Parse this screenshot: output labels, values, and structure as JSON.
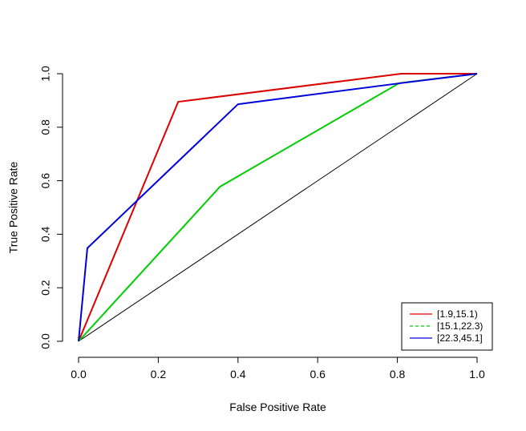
{
  "chart_data": {
    "type": "line",
    "title": "",
    "xlabel": "False Positive Rate",
    "ylabel": "True Positive Rate",
    "xlim": [
      0,
      1
    ],
    "ylim": [
      0,
      1
    ],
    "x_ticks": [
      "0.0",
      "0.2",
      "0.4",
      "0.6",
      "0.8",
      "1.0"
    ],
    "y_ticks": [
      "0.0",
      "0.2",
      "0.4",
      "0.6",
      "0.8",
      "1.0"
    ],
    "grid": false,
    "legend_position": "bottom-right",
    "diagonal": {
      "x": [
        0,
        1
      ],
      "y": [
        0,
        1
      ],
      "color": "#000000"
    },
    "series": [
      {
        "name": "[1.9,15.1)",
        "color": "#dd0000",
        "dash": "solid",
        "x": [
          0,
          0.25,
          0.81,
          1.0
        ],
        "y": [
          0,
          0.895,
          1.0,
          1.0
        ]
      },
      {
        "name": "[15.1,22.3)",
        "color": "#00cc00",
        "dash": "solid",
        "legend_dash": "dashed",
        "x": [
          0,
          0.355,
          0.805,
          1.0
        ],
        "y": [
          0,
          0.578,
          0.965,
          1.0
        ]
      },
      {
        "name": "[22.3,45.1]",
        "color": "#0000dd",
        "dash": "solid",
        "x": [
          0,
          0.022,
          0.4,
          0.81,
          1.0
        ],
        "y": [
          0,
          0.348,
          0.886,
          0.965,
          1.0
        ]
      }
    ]
  }
}
